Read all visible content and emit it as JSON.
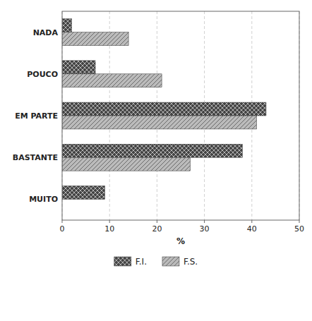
{
  "chart_data": {
    "type": "bar",
    "orientation": "horizontal",
    "categories": [
      "NADA",
      "POUCO",
      "EM PARTE",
      "BASTANTE",
      "MUITO"
    ],
    "series": [
      {
        "name": "F.I.",
        "color": "#444444",
        "values": [
          2,
          7,
          43,
          38,
          9
        ]
      },
      {
        "name": "F.S.",
        "color": "#bbbbbb",
        "values": [
          14,
          21,
          41,
          27,
          0
        ]
      }
    ],
    "x_label": "%",
    "xlim": [
      0,
      50
    ],
    "xticks": [
      0,
      10,
      20,
      30,
      40,
      50
    ],
    "grid": true,
    "legend": "bottom"
  }
}
